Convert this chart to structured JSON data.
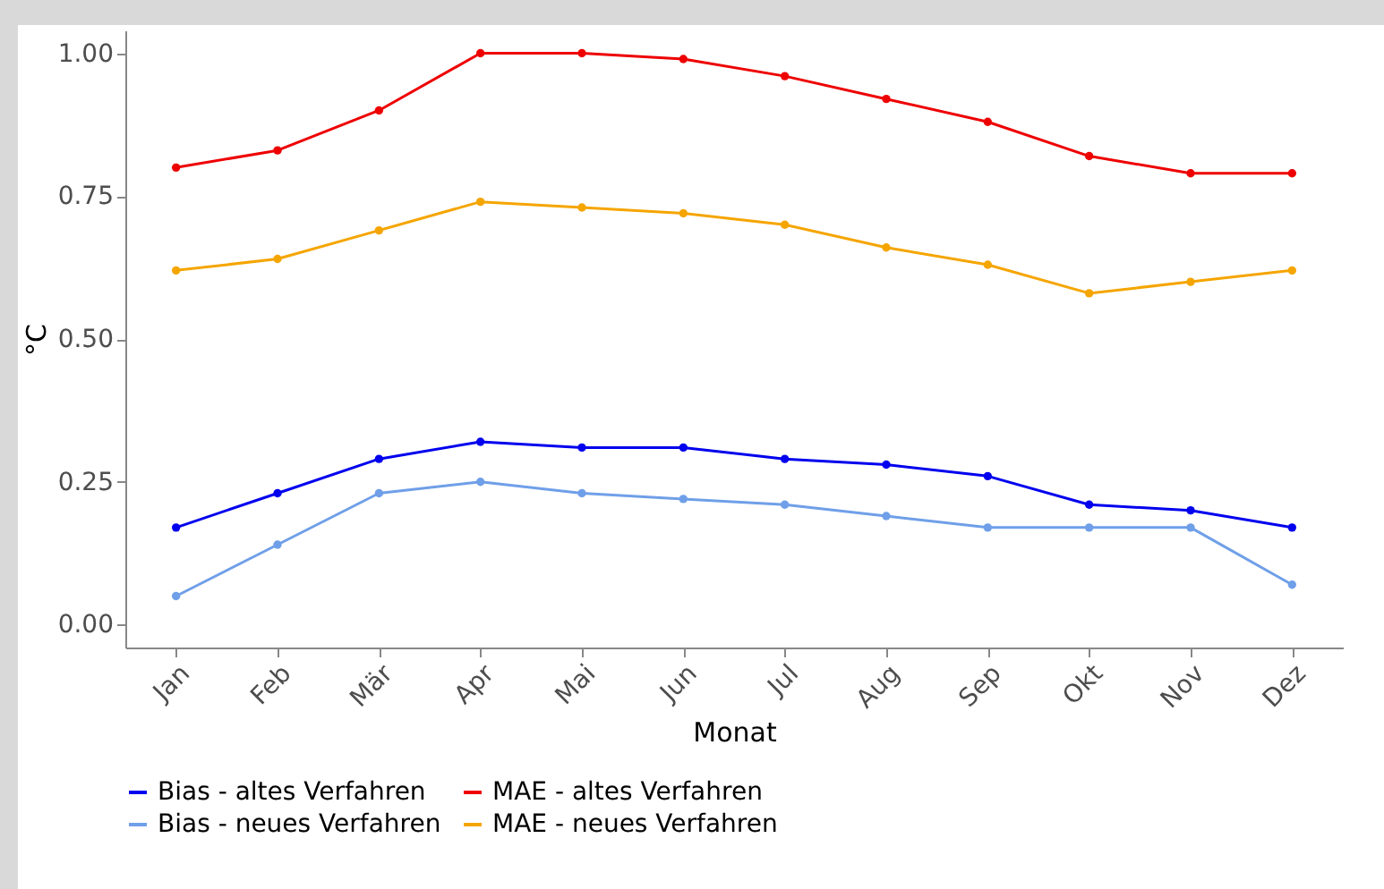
{
  "chart_data": {
    "type": "line",
    "xlabel": "Monat",
    "ylabel": "°C",
    "categories": [
      "Jan",
      "Feb",
      "Mär",
      "Apr",
      "Mai",
      "Jun",
      "Jul",
      "Aug",
      "Sep",
      "Okt",
      "Nov",
      "Dez"
    ],
    "series": [
      {
        "name": "Bias - altes Verfahren",
        "color": "#0000ee",
        "values": [
          0.17,
          0.23,
          0.29,
          0.32,
          0.31,
          0.31,
          0.29,
          0.28,
          0.26,
          0.21,
          0.2,
          0.17
        ]
      },
      {
        "name": "MAE - altes Verfahren",
        "color": "#ee0000",
        "values": [
          0.8,
          0.83,
          0.9,
          1.0,
          1.0,
          0.99,
          0.96,
          0.92,
          0.88,
          0.82,
          0.79,
          0.79
        ]
      },
      {
        "name": "Bias - neues Verfahren",
        "color": "#6f9fe8",
        "values": [
          0.05,
          0.14,
          0.23,
          0.25,
          0.23,
          0.22,
          0.21,
          0.19,
          0.17,
          0.17,
          0.17,
          0.07
        ]
      },
      {
        "name": "MAE - neues Verfahren",
        "color": "#f5a500",
        "values": [
          0.62,
          0.64,
          0.69,
          0.74,
          0.73,
          0.72,
          0.7,
          0.66,
          0.63,
          0.58,
          0.6,
          0.62
        ]
      }
    ],
    "ylim": [
      -0.04,
      1.04
    ],
    "yticks": [
      {
        "value": 0,
        "label": "0.00"
      },
      {
        "value": 0.25,
        "label": "0.25"
      },
      {
        "value": 0.5,
        "label": "0.50"
      },
      {
        "value": 0.75,
        "label": "0.75"
      },
      {
        "value": 1,
        "label": "1.00"
      }
    ],
    "grid": false,
    "legend": "bottom",
    "marker": "circle",
    "line_style": "solid"
  }
}
